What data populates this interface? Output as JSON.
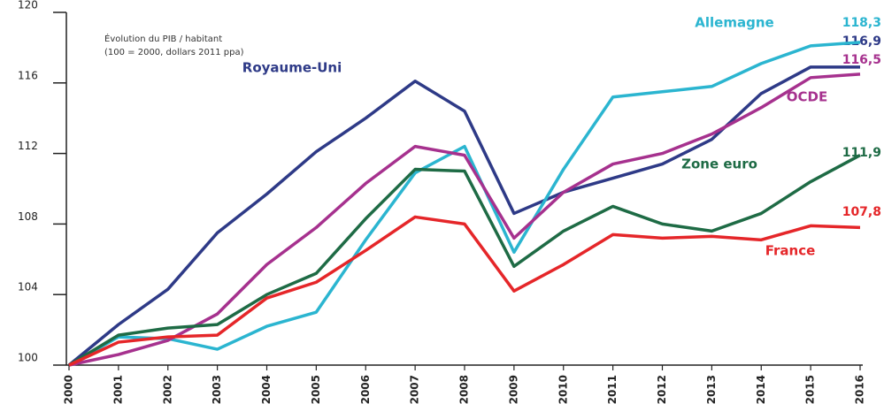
{
  "chart_data": {
    "type": "line",
    "annotations": [
      "Évolution du PIB / habitant",
      "(100 = 2000, dollars 2011 ppa)"
    ],
    "categories": [
      "2000",
      "2001",
      "2002",
      "2003",
      "2004",
      "2005",
      "2006",
      "2007",
      "2008",
      "2009",
      "2010",
      "2011",
      "2012",
      "2013",
      "2014",
      "2015",
      "2016"
    ],
    "ylim": [
      100,
      120
    ],
    "yticks": [
      100,
      104,
      108,
      112,
      116,
      120
    ],
    "series": [
      {
        "name": "Royaume-Uni",
        "color": "#2e3a87",
        "values": [
          100,
          102.3,
          104.3,
          107.5,
          109.7,
          112.1,
          114.0,
          116.1,
          114.4,
          108.6,
          109.8,
          110.6,
          111.4,
          112.8,
          115.4,
          116.9,
          116.9
        ],
        "value_labels": [
          null,
          null,
          null,
          null,
          null,
          null,
          null,
          null,
          null,
          null,
          null,
          null,
          null,
          null,
          null,
          null,
          "116,9"
        ]
      },
      {
        "name": "Allemagne",
        "color": "#2bb5d0",
        "values": [
          100,
          101.6,
          101.5,
          100.9,
          102.2,
          103.0,
          107.1,
          110.9,
          112.4,
          106.4,
          111.1,
          115.2,
          115.5,
          115.8,
          117.1,
          118.1,
          118.3
        ],
        "value_labels": [
          null,
          null,
          null,
          null,
          null,
          null,
          null,
          null,
          null,
          null,
          null,
          null,
          null,
          null,
          null,
          null,
          "118,3"
        ]
      },
      {
        "name": "OCDE",
        "color": "#a6318e",
        "values": [
          100,
          100.6,
          101.4,
          102.9,
          105.7,
          107.8,
          110.3,
          112.4,
          111.9,
          107.2,
          109.8,
          111.4,
          112.0,
          113.1,
          114.6,
          116.3,
          116.5
        ],
        "value_labels": [
          null,
          null,
          null,
          null,
          null,
          null,
          null,
          null,
          null,
          null,
          null,
          null,
          null,
          null,
          null,
          null,
          "116,5"
        ]
      },
      {
        "name": "Zone euro",
        "color": "#1e6b45",
        "values": [
          100,
          101.7,
          102.1,
          102.3,
          104.0,
          105.2,
          108.3,
          111.1,
          111.0,
          105.6,
          107.6,
          109.0,
          108.0,
          107.6,
          108.6,
          110.4,
          111.9
        ],
        "value_labels": [
          null,
          null,
          null,
          null,
          null,
          null,
          null,
          null,
          null,
          null,
          null,
          null,
          null,
          null,
          null,
          null,
          "111,9"
        ]
      },
      {
        "name": "France",
        "color": "#e52629",
        "values": [
          100,
          101.3,
          101.6,
          101.7,
          103.8,
          104.7,
          106.5,
          108.4,
          108.0,
          104.2,
          105.7,
          107.4,
          107.2,
          107.3,
          107.1,
          107.9,
          107.8
        ],
        "value_labels": [
          null,
          null,
          null,
          null,
          null,
          null,
          null,
          null,
          null,
          null,
          null,
          null,
          null,
          null,
          null,
          null,
          "107,8"
        ]
      }
    ]
  }
}
